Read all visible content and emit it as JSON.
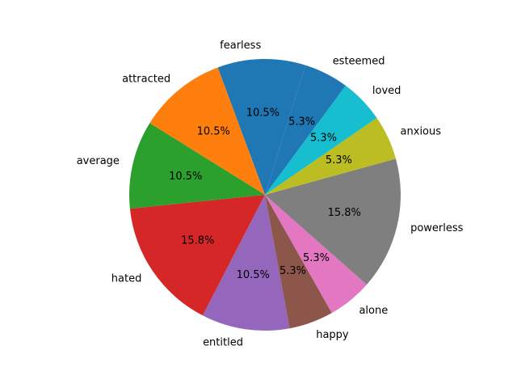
{
  "chart_data": {
    "type": "pie",
    "title": "",
    "categories": [
      "fearless",
      "attracted",
      "average",
      "hated",
      "entitled",
      "happy",
      "alone",
      "powerless",
      "anxious",
      "loved",
      "esteemed"
    ],
    "values": [
      10.5,
      10.5,
      10.5,
      15.8,
      10.5,
      5.3,
      5.3,
      15.8,
      5.3,
      5.3,
      5.3
    ],
    "value_labels": [
      "10.5%",
      "10.5%",
      "10.5%",
      "15.8%",
      "10.5%",
      "5.3%",
      "5.3%",
      "15.8%",
      "5.3%",
      "5.3%",
      "5.3%"
    ],
    "colors": [
      "#1f77b4",
      "#ff7f0e",
      "#2ca02c",
      "#d62728",
      "#9467bd",
      "#8c564b",
      "#e377c2",
      "#7f7f7f",
      "#bcbd22",
      "#17becf",
      "#1f77b4"
    ],
    "legend": "none",
    "grid": false
  }
}
